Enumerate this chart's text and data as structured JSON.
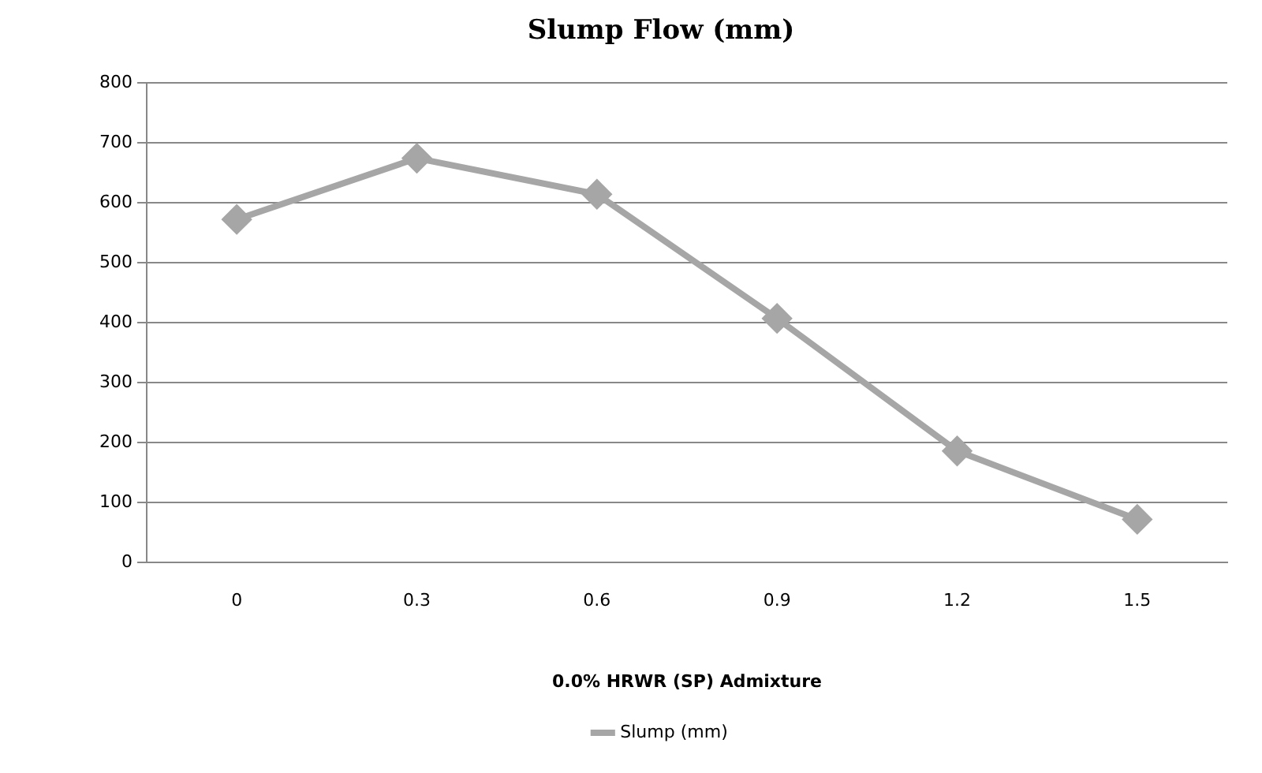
{
  "chart_data": {
    "type": "line",
    "title": "Slump Flow (mm)",
    "xlabel": "0.0% HRWR (SP) Admixture",
    "categories": [
      "0",
      "0.3",
      "0.6",
      "0.9",
      "1.2",
      "1.5"
    ],
    "series": [
      {
        "name": "Slump (mm)",
        "color": "#a6a6a6",
        "values": [
          572,
          674,
          614,
          407,
          186,
          72
        ]
      }
    ],
    "ylim": [
      0,
      800
    ],
    "yticks": [
      0,
      100,
      200,
      300,
      400,
      500,
      600,
      700,
      800
    ],
    "grid": "y",
    "legend": "bottom",
    "marker": "diamond",
    "line_style": "solid"
  }
}
